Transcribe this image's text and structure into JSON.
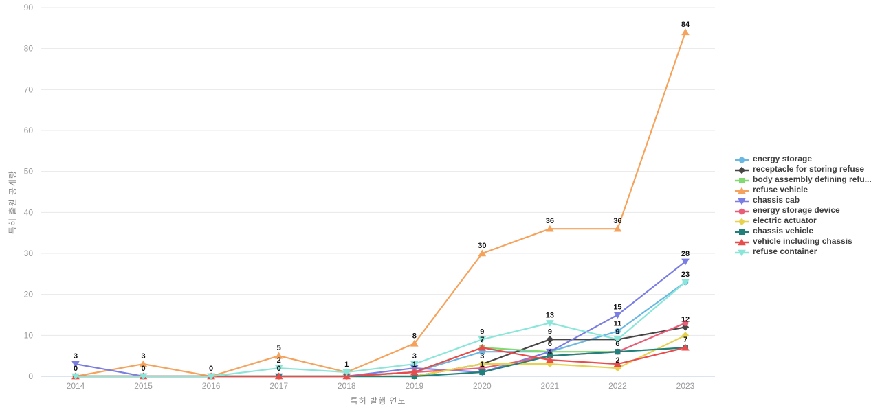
{
  "chart_data": {
    "type": "line",
    "x": [
      "2014",
      "2015",
      "2016",
      "2017",
      "2018",
      "2019",
      "2020",
      "2021",
      "2022",
      "2023"
    ],
    "xlabel": "특허 발행 연도",
    "ylabel": "특허 출원 공개량",
    "ylim": [
      0,
      90
    ],
    "yticks": [
      0,
      10,
      20,
      30,
      40,
      50,
      60,
      70,
      80,
      90
    ],
    "grid": true,
    "legend_position": "right",
    "axis_line_color": "#b7c9e0",
    "grid_color": "#e8e8e8",
    "tick_color": "#999999",
    "series": [
      {
        "name": "energy storage",
        "color": "#69b7e3",
        "marker": "circle",
        "values": [
          0,
          0,
          0,
          0,
          0,
          1,
          6,
          6,
          11,
          23
        ]
      },
      {
        "name": "receptacle for storing refuse",
        "color": "#464646",
        "marker": "diamond",
        "values": [
          0,
          0,
          0,
          0,
          0,
          0,
          3,
          9,
          9,
          12
        ]
      },
      {
        "name": "body assembly defining refu...",
        "color": "#82d96f",
        "marker": "square",
        "values": [
          0,
          0,
          0,
          0,
          0,
          1,
          7,
          6,
          6,
          7
        ]
      },
      {
        "name": "refuse vehicle",
        "color": "#f5a35c",
        "marker": "triangle",
        "values": [
          0,
          3,
          0,
          5,
          1,
          8,
          30,
          36,
          36,
          84
        ]
      },
      {
        "name": "chassis cab",
        "color": "#7a7ee3",
        "marker": "triangle-down",
        "values": [
          3,
          0,
          0,
          0,
          0,
          2,
          1,
          6,
          15,
          28
        ]
      },
      {
        "name": "energy storage device",
        "color": "#e85d78",
        "marker": "circle",
        "values": [
          0,
          0,
          0,
          0,
          0,
          1,
          2,
          5,
          6,
          13
        ]
      },
      {
        "name": "electric actuator",
        "color": "#e6d24e",
        "marker": "diamond",
        "values": [
          0,
          0,
          0,
          0,
          0,
          0,
          3,
          3,
          2,
          10
        ]
      },
      {
        "name": "chassis vehicle",
        "color": "#217f7c",
        "marker": "square",
        "values": [
          0,
          0,
          0,
          0,
          0,
          0,
          1,
          5,
          6,
          7
        ]
      },
      {
        "name": "vehicle including chassis",
        "color": "#e84c4c",
        "marker": "triangle",
        "values": [
          0,
          0,
          0,
          0,
          0,
          1,
          7,
          4,
          3,
          7
        ]
      },
      {
        "name": "refuse container",
        "color": "#8be6da",
        "marker": "triangle-down",
        "values": [
          0,
          0,
          0,
          2,
          1,
          3,
          9,
          13,
          9,
          23
        ]
      }
    ],
    "visible_point_labels": [
      {
        "year_index": 0,
        "series_index": 4,
        "text": "3"
      },
      {
        "year_index": 0,
        "series_index": 0,
        "text": "0"
      },
      {
        "year_index": 1,
        "series_index": 3,
        "text": "3"
      },
      {
        "year_index": 1,
        "series_index": 0,
        "text": "0"
      },
      {
        "year_index": 2,
        "series_index": 0,
        "text": "0"
      },
      {
        "year_index": 3,
        "series_index": 3,
        "text": "5"
      },
      {
        "year_index": 3,
        "series_index": 9,
        "text": "2"
      },
      {
        "year_index": 3,
        "series_index": 0,
        "text": "0"
      },
      {
        "year_index": 4,
        "series_index": 3,
        "text": "1"
      },
      {
        "year_index": 5,
        "series_index": 3,
        "text": "8"
      },
      {
        "year_index": 5,
        "series_index": 9,
        "text": "3"
      },
      {
        "year_index": 5,
        "series_index": 5,
        "text": "1"
      },
      {
        "year_index": 6,
        "series_index": 3,
        "text": "30"
      },
      {
        "year_index": 6,
        "series_index": 9,
        "text": "9"
      },
      {
        "year_index": 6,
        "series_index": 8,
        "text": "7"
      },
      {
        "year_index": 6,
        "series_index": 6,
        "text": "3"
      },
      {
        "year_index": 6,
        "series_index": 7,
        "text": "1"
      },
      {
        "year_index": 7,
        "series_index": 3,
        "text": "36"
      },
      {
        "year_index": 7,
        "series_index": 9,
        "text": "13"
      },
      {
        "year_index": 7,
        "series_index": 1,
        "text": "9"
      },
      {
        "year_index": 7,
        "series_index": 2,
        "text": "6"
      },
      {
        "year_index": 7,
        "series_index": 8,
        "text": "4"
      },
      {
        "year_index": 8,
        "series_index": 3,
        "text": "36"
      },
      {
        "year_index": 8,
        "series_index": 4,
        "text": "15"
      },
      {
        "year_index": 8,
        "series_index": 0,
        "text": "11"
      },
      {
        "year_index": 8,
        "series_index": 9,
        "text": "9"
      },
      {
        "year_index": 8,
        "series_index": 5,
        "text": "6"
      },
      {
        "year_index": 8,
        "series_index": 6,
        "text": "2"
      },
      {
        "year_index": 9,
        "series_index": 3,
        "text": "84"
      },
      {
        "year_index": 9,
        "series_index": 4,
        "text": "28"
      },
      {
        "year_index": 9,
        "series_index": 0,
        "text": "23"
      },
      {
        "year_index": 9,
        "series_index": 1,
        "text": "12"
      },
      {
        "year_index": 9,
        "series_index": 7,
        "text": "7"
      }
    ]
  }
}
